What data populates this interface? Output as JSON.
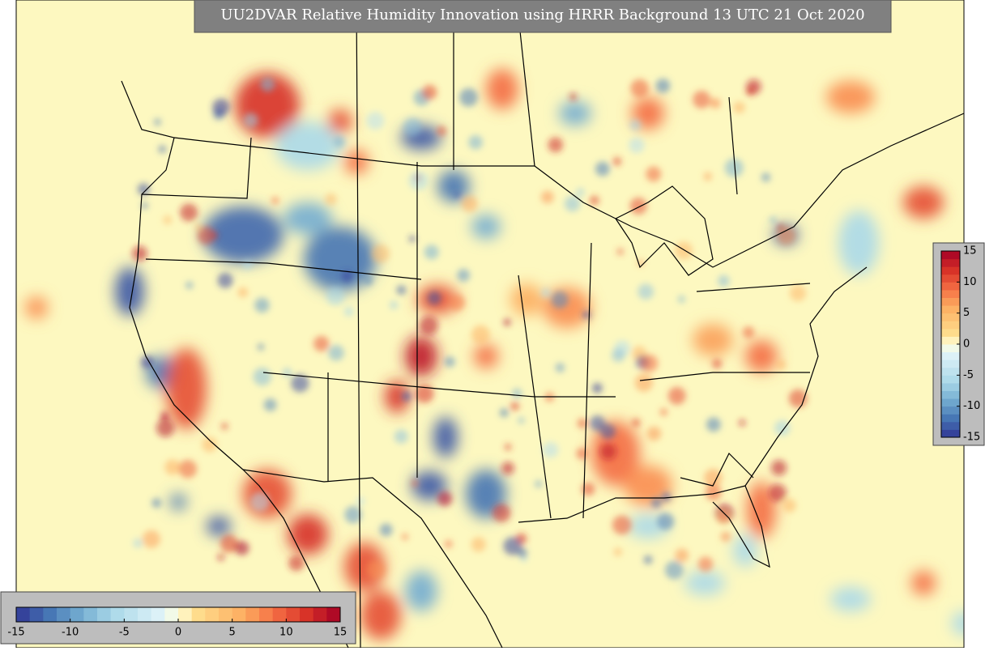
{
  "title": "UU2DVAR Relative Humidity Innovation using HRRR Background 13 UTC 21 Oct 2020",
  "colorbar": {
    "range": [
      -15,
      15
    ],
    "ticks": [
      -15,
      -10,
      -5,
      0,
      5,
      10,
      15
    ]
  }
}
